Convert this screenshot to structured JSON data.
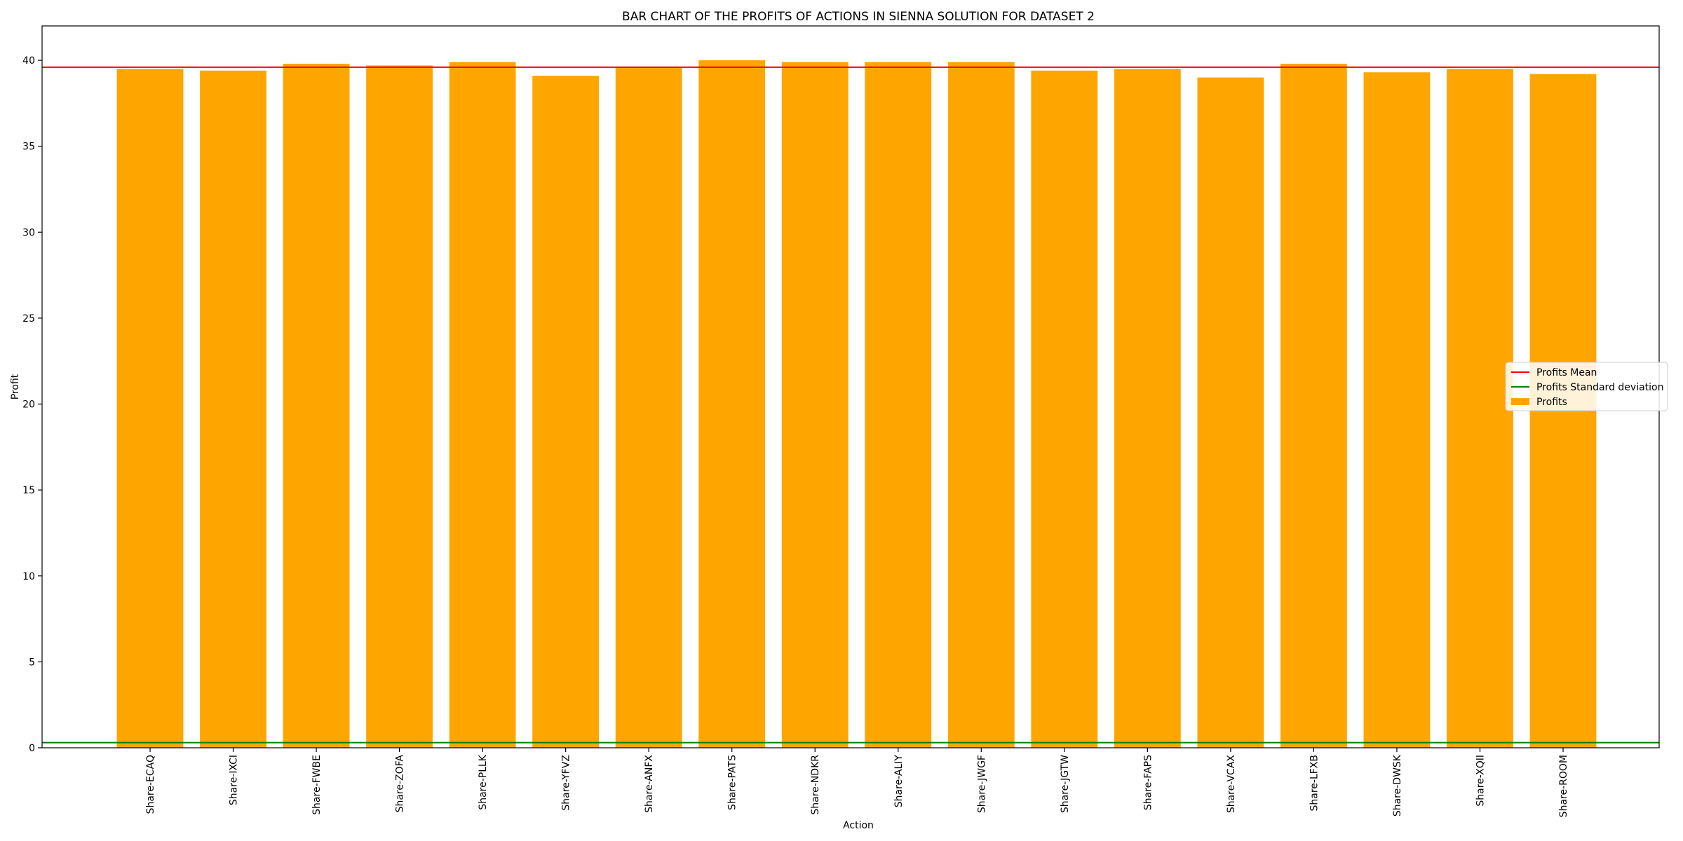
{
  "chart_data": {
    "type": "bar",
    "title": "BAR CHART OF THE PROFITS OF ACTIONS IN SIENNA SOLUTION FOR DATASET 2",
    "xlabel": "Action",
    "ylabel": "Profit",
    "ylim": [
      0,
      42
    ],
    "yticks": [
      0,
      5,
      10,
      15,
      20,
      25,
      30,
      35,
      40
    ],
    "grid": false,
    "legend_position": "center-right",
    "categories": [
      "Share-ECAQ",
      "Share-IXCI",
      "Share-FWBE",
      "Share-ZOFA",
      "Share-PLLK",
      "Share-YFVZ",
      "Share-ANFX",
      "Share-PATS",
      "Share-NDKR",
      "Share-ALIY",
      "Share-JWGF",
      "Share-JGTW",
      "Share-FAPS",
      "Share-VCAX",
      "Share-LFXB",
      "Share-DWSK",
      "Share-XQII",
      "Share-ROOM"
    ],
    "series": [
      {
        "name": "Profits",
        "color": "#ffa500",
        "values": [
          39.5,
          39.4,
          39.8,
          39.7,
          39.9,
          39.1,
          39.6,
          40.0,
          39.9,
          39.9,
          39.9,
          39.4,
          39.5,
          39.0,
          39.8,
          39.3,
          39.5,
          39.2
        ]
      }
    ],
    "reference_lines": [
      {
        "name": "Profits Mean",
        "value": 39.6,
        "color": "#ff0000"
      },
      {
        "name": "Profits Standard deviation",
        "value": 0.3,
        "color": "#008000"
      }
    ],
    "legend": [
      {
        "label": "Profits Mean",
        "kind": "line",
        "color": "#ff0000"
      },
      {
        "label": "Profits Standard deviation",
        "kind": "line",
        "color": "#008000"
      },
      {
        "label": "Profits",
        "kind": "patch",
        "color": "#ffa500"
      }
    ]
  }
}
